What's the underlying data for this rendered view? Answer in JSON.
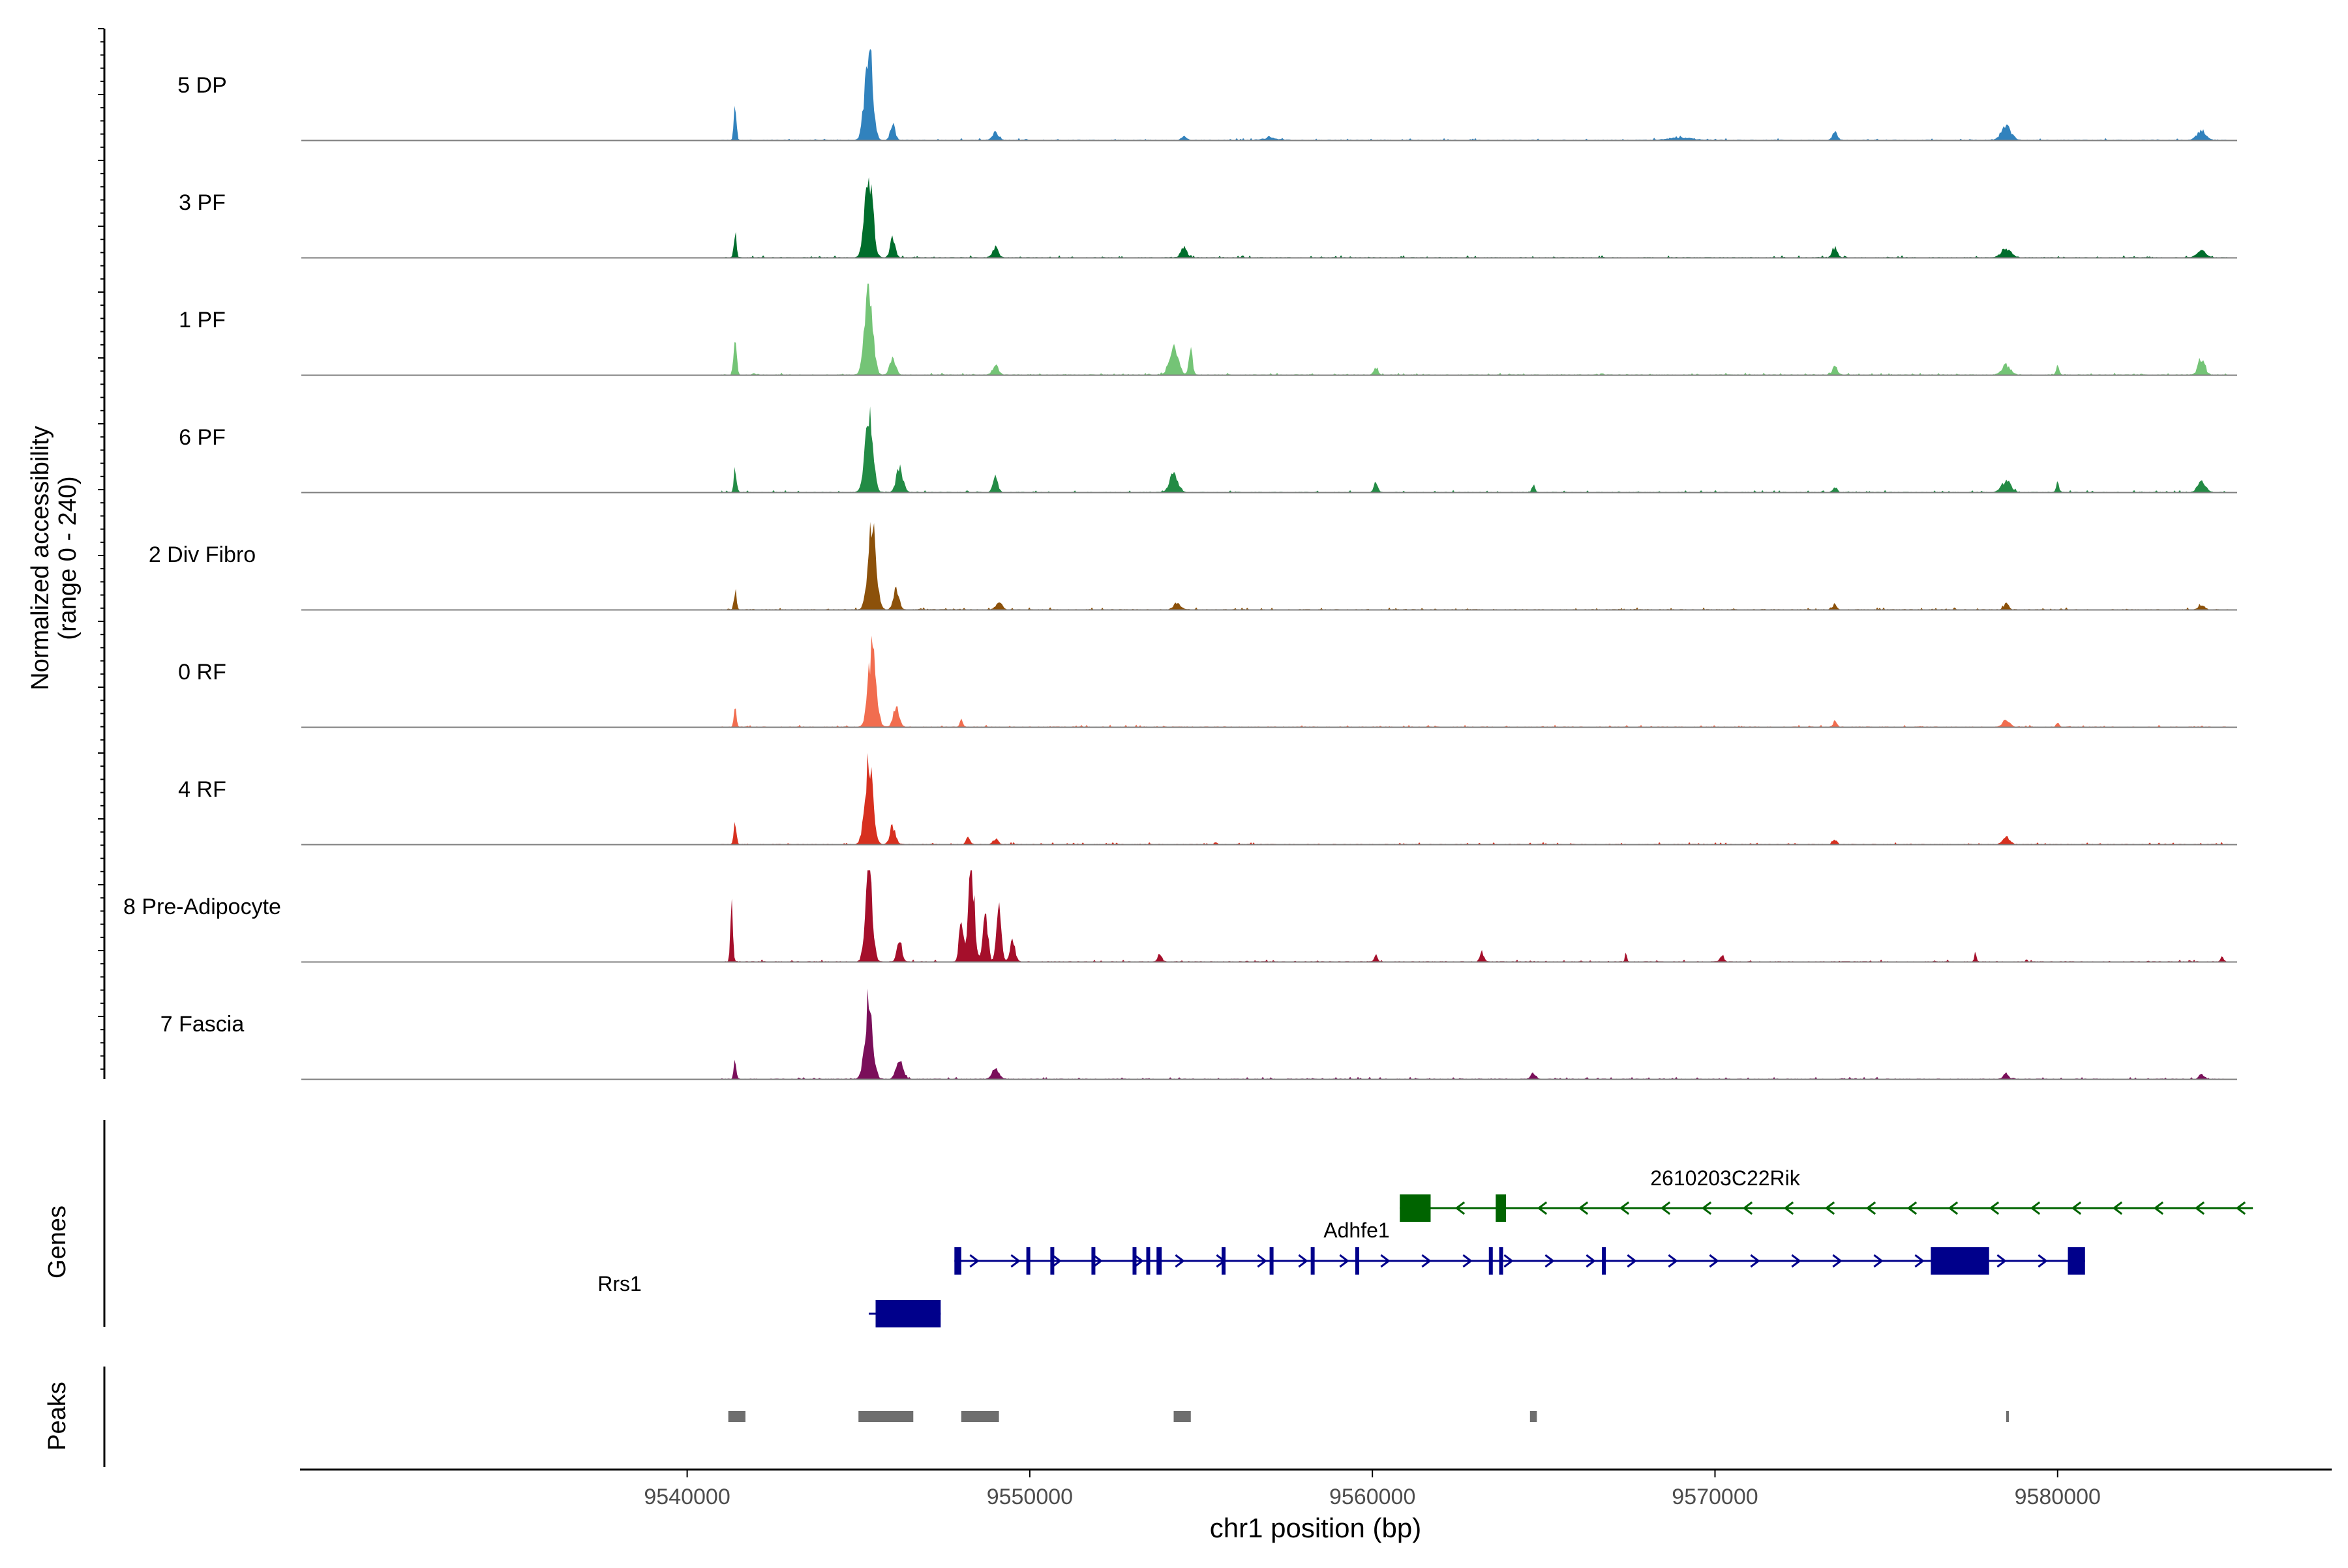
{
  "chart_data": {
    "type": "area",
    "title": "",
    "xlabel": "chr1 position (bp)",
    "xlim": [
      9528700,
      9588000
    ],
    "x_ticks": [
      9540000,
      9550000,
      9560000,
      9570000,
      9580000
    ],
    "x_tick_labels": [
      "9540000",
      "9550000",
      "9560000",
      "9570000",
      "9580000"
    ],
    "ylabel_line1": "Normalized accessibility",
    "ylabel_line2": "(range 0 - 240)",
    "ylim": [
      0,
      240
    ],
    "genes_label": "Genes",
    "peaks_label": "Peaks",
    "tracks": [
      {
        "name": "5 DP",
        "color": "#3182bd",
        "peaks": [
          [
            9541400,
            5,
            90
          ],
          [
            9545300,
            16,
            240
          ],
          [
            9546000,
            10,
            40
          ],
          [
            9549000,
            12,
            20
          ],
          [
            9554500,
            10,
            10
          ],
          [
            9557000,
            30,
            6
          ],
          [
            9573500,
            10,
            20
          ],
          [
            9578500,
            20,
            36
          ],
          [
            9584200,
            18,
            25
          ],
          [
            9569000,
            50,
            6
          ]
        ]
      },
      {
        "name": "3 PF",
        "color": "#006d2c",
        "peaks": [
          [
            9541400,
            5,
            70
          ],
          [
            9545300,
            16,
            225
          ],
          [
            9546000,
            10,
            55
          ],
          [
            9549000,
            12,
            25
          ],
          [
            9554500,
            12,
            26
          ],
          [
            9573500,
            10,
            25
          ],
          [
            9578500,
            20,
            22
          ],
          [
            9584200,
            18,
            18
          ]
        ]
      },
      {
        "name": "1 PF",
        "color": "#74c476",
        "peaks": [
          [
            9541400,
            6,
            90
          ],
          [
            9545300,
            16,
            240
          ],
          [
            9546000,
            12,
            45
          ],
          [
            9549000,
            12,
            25
          ],
          [
            9554200,
            18,
            70
          ],
          [
            9554700,
            8,
            60
          ],
          [
            9560100,
            8,
            20
          ],
          [
            9573500,
            10,
            22
          ],
          [
            9578500,
            18,
            25
          ],
          [
            9580000,
            6,
            24
          ],
          [
            9584200,
            14,
            40
          ]
        ]
      },
      {
        "name": "6 PF",
        "color": "#238b45",
        "peaks": [
          [
            9541400,
            5,
            65
          ],
          [
            9545300,
            16,
            200
          ],
          [
            9546200,
            14,
            60
          ],
          [
            9549000,
            10,
            40
          ],
          [
            9554200,
            16,
            50
          ],
          [
            9560100,
            8,
            25
          ],
          [
            9564700,
            6,
            20
          ],
          [
            9573500,
            8,
            15
          ],
          [
            9578500,
            18,
            30
          ],
          [
            9580000,
            6,
            25
          ],
          [
            9584200,
            16,
            28
          ]
        ]
      },
      {
        "name": "2 Div Fibro",
        "color": "#8c510a",
        "peaks": [
          [
            9541400,
            5,
            50
          ],
          [
            9545400,
            16,
            230
          ],
          [
            9546100,
            12,
            50
          ],
          [
            9549100,
            12,
            20
          ],
          [
            9554300,
            14,
            16
          ],
          [
            9573500,
            8,
            14
          ],
          [
            9578500,
            10,
            16
          ],
          [
            9584200,
            12,
            12
          ]
        ]
      },
      {
        "name": "0 RF",
        "color": "#f16d4f",
        "peaks": [
          [
            9541400,
            5,
            60
          ],
          [
            9545400,
            16,
            210
          ],
          [
            9546100,
            12,
            50
          ],
          [
            9548000,
            6,
            20
          ],
          [
            9573500,
            8,
            15
          ],
          [
            9578500,
            14,
            18
          ],
          [
            9580000,
            6,
            10
          ]
        ]
      },
      {
        "name": "4 RF",
        "color": "#d7301f",
        "peaks": [
          [
            9541400,
            5,
            60
          ],
          [
            9545300,
            16,
            220
          ],
          [
            9546000,
            12,
            45
          ],
          [
            9548200,
            8,
            20
          ],
          [
            9549000,
            10,
            15
          ],
          [
            9573500,
            8,
            12
          ],
          [
            9578500,
            14,
            20
          ]
        ]
      },
      {
        "name": "8 Pre-Adipocyte",
        "color": "#a50f2b",
        "peaks": [
          [
            9541300,
            5,
            140
          ],
          [
            9545300,
            14,
            240
          ],
          [
            9546200,
            10,
            55
          ],
          [
            9548000,
            8,
            130
          ],
          [
            9548300,
            12,
            240
          ],
          [
            9548700,
            10,
            150
          ],
          [
            9549100,
            10,
            140
          ],
          [
            9549500,
            10,
            60
          ],
          [
            9553800,
            8,
            20
          ],
          [
            9560100,
            6,
            20
          ],
          [
            9563200,
            8,
            25
          ],
          [
            9567400,
            4,
            20
          ],
          [
            9570200,
            8,
            18
          ],
          [
            9577600,
            4,
            30
          ],
          [
            9584800,
            6,
            15
          ]
        ]
      },
      {
        "name": "7 Fascia",
        "color": "#7a0f5a",
        "peaks": [
          [
            9541400,
            5,
            50
          ],
          [
            9545300,
            16,
            200
          ],
          [
            9546200,
            14,
            45
          ],
          [
            9549000,
            14,
            25
          ],
          [
            9564700,
            10,
            15
          ],
          [
            9578500,
            10,
            14
          ],
          [
            9584200,
            10,
            12
          ]
        ]
      }
    ],
    "genes": [
      {
        "name": "2610203C22Rik",
        "strand": "-",
        "color": "#006400",
        "start": 9560800,
        "end": 9585700,
        "exons": [
          [
            9560800,
            9561700
          ],
          [
            9563600,
            9563900
          ]
        ]
      },
      {
        "name": "Adhfe1",
        "strand": "+",
        "color": "#00008b",
        "start": 9547800,
        "end": 9580800,
        "exons": [
          [
            9547800,
            9548000
          ],
          [
            9549900,
            9549980
          ],
          [
            9550600,
            9550680
          ],
          [
            9551800,
            9551860
          ],
          [
            9553000,
            9553080
          ],
          [
            9553400,
            9553480
          ],
          [
            9553700,
            9553850
          ],
          [
            9555600,
            9555680
          ],
          [
            9557000,
            9557100
          ],
          [
            9558200,
            9558300
          ],
          [
            9559500,
            9559580
          ],
          [
            9563400,
            9563480
          ],
          [
            9563700,
            9563800
          ],
          [
            9566700,
            9566800
          ],
          [
            9576300,
            9578000
          ],
          [
            9580300,
            9580800
          ]
        ]
      },
      {
        "name": "Rrs1",
        "strand": "+",
        "color": "#00008b",
        "start": 9545300,
        "end": 9547400,
        "exons": [
          [
            9545500,
            9547400
          ]
        ]
      }
    ],
    "peaks": [
      [
        9541200,
        9541700
      ],
      [
        9545000,
        9546600
      ],
      [
        9548000,
        9549100
      ],
      [
        9554200,
        9554700
      ],
      [
        9564600,
        9564800
      ],
      [
        9578500,
        9578560
      ]
    ]
  }
}
